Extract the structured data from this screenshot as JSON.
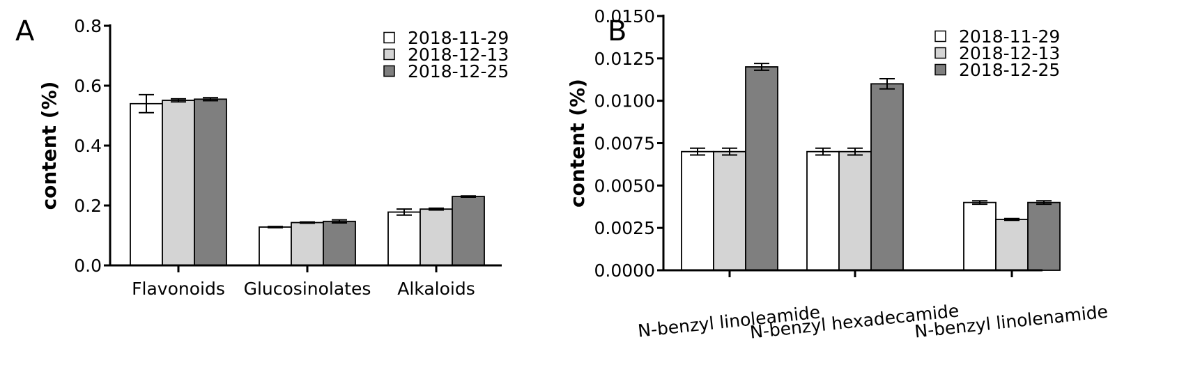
{
  "chart_data": [
    {
      "panel": "A",
      "type": "bar",
      "title": "",
      "xlabel": "",
      "ylabel": "content (%)",
      "ylim": [
        0,
        0.8
      ],
      "yticks": [
        "0.0",
        "0.2",
        "0.4",
        "0.6",
        "0.8"
      ],
      "tick_values": [
        0,
        0.2,
        0.4,
        0.6,
        0.8
      ],
      "categories": [
        "Flavonoids",
        "Glucosinolates",
        "Alkaloids"
      ],
      "series": [
        {
          "name": "2018-11-29",
          "color": "#ffffff",
          "values": [
            0.54,
            0.128,
            0.178
          ],
          "errors": [
            0.03,
            0.002,
            0.01
          ]
        },
        {
          "name": "2018-12-13",
          "color": "#d4d4d4",
          "values": [
            0.551,
            0.143,
            0.188
          ],
          "errors": [
            0.005,
            0.002,
            0.003
          ]
        },
        {
          "name": "2018-12-25",
          "color": "#7f7f7f",
          "values": [
            0.555,
            0.147,
            0.23
          ],
          "errors": [
            0.005,
            0.005,
            0.002
          ]
        }
      ],
      "legend_position": "top-right",
      "grid": false
    },
    {
      "panel": "B",
      "type": "bar",
      "title": "",
      "xlabel": "",
      "ylabel": "content (%)",
      "ylim": [
        0,
        0.015
      ],
      "yticks": [
        "0.0000",
        "0.0025",
        "0.0050",
        "0.0075",
        "0.0100",
        "0.0125",
        "0.0150"
      ],
      "tick_values": [
        0,
        0.0025,
        0.005,
        0.0075,
        0.01,
        0.0125,
        0.015
      ],
      "categories": [
        "N-benzyl linoleamide",
        "N-benzyl hexadecamide",
        "N-benzyl linolenamide"
      ],
      "series": [
        {
          "name": "2018-11-29",
          "color": "#ffffff",
          "values": [
            0.007,
            0.007,
            0.004
          ],
          "errors": [
            0.0002,
            0.0002,
            0.0001
          ]
        },
        {
          "name": "2018-12-13",
          "color": "#d4d4d4",
          "values": [
            0.007,
            0.007,
            0.003
          ],
          "errors": [
            0.0002,
            0.0002,
            5e-05
          ]
        },
        {
          "name": "2018-12-25",
          "color": "#7f7f7f",
          "values": [
            0.012,
            0.011,
            0.004
          ],
          "errors": [
            0.0002,
            0.0003,
            0.0001
          ]
        }
      ],
      "legend_position": "top-right",
      "grid": false
    }
  ]
}
